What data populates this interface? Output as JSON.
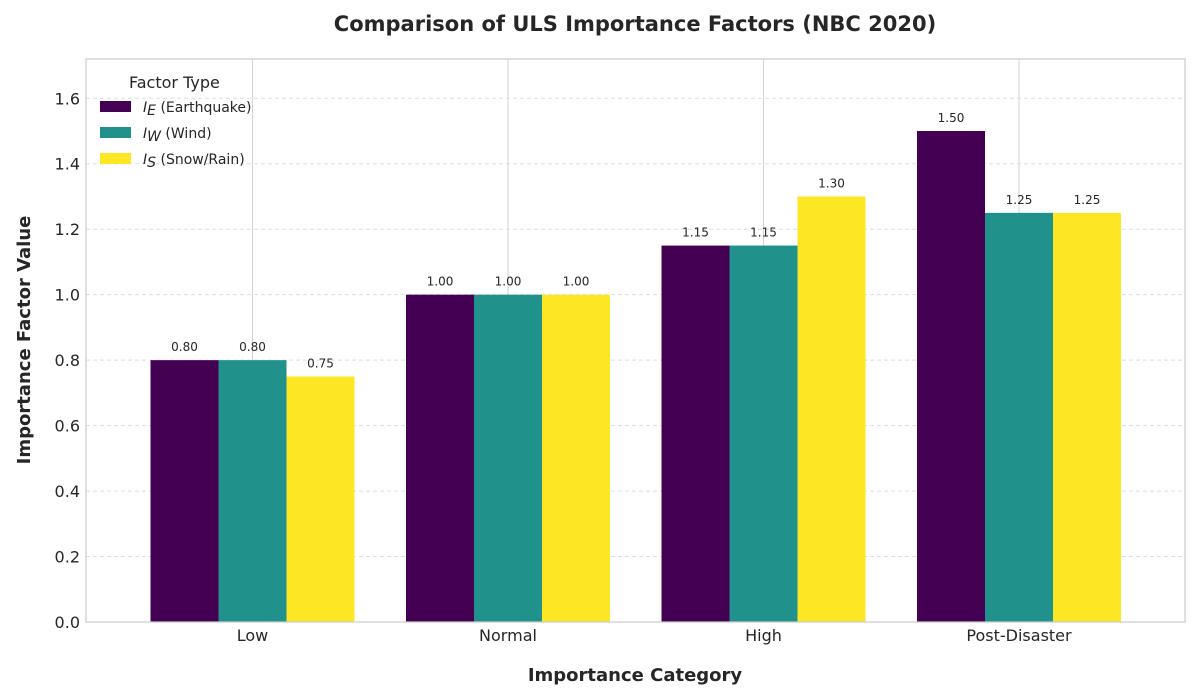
{
  "chart_data": {
    "type": "bar",
    "title": "Comparison of ULS Importance Factors (NBC 2020)",
    "xlabel": "Importance Category",
    "ylabel": "Importance Factor Value",
    "categories": [
      "Low",
      "Normal",
      "High",
      "Post-Disaster"
    ],
    "ylim": [
      0,
      1.72
    ],
    "yticks": [
      0.0,
      0.2,
      0.4,
      0.6,
      0.8,
      1.0,
      1.2,
      1.4,
      1.6
    ],
    "grid": true,
    "legend": {
      "title": "Factor Type",
      "placement": "top-left"
    },
    "series": [
      {
        "name": "I_E (Earthquake)",
        "symbol": "I",
        "subscript": "E",
        "desc": "(Earthquake)",
        "color": "#440154",
        "values": [
          0.8,
          1.0,
          1.15,
          1.5
        ],
        "labels": [
          "0.80",
          "1.00",
          "1.15",
          "1.50"
        ]
      },
      {
        "name": "I_W (Wind)",
        "symbol": "I",
        "subscript": "W",
        "desc": "(Wind)",
        "color": "#21918c",
        "values": [
          0.8,
          1.0,
          1.15,
          1.25
        ],
        "labels": [
          "0.80",
          "1.00",
          "1.15",
          "1.25"
        ]
      },
      {
        "name": "I_S (Snow/Rain)",
        "symbol": "I",
        "subscript": "S",
        "desc": "(Snow/Rain)",
        "color": "#fde725",
        "values": [
          0.75,
          1.0,
          1.3,
          1.25
        ],
        "labels": [
          "0.75",
          "1.00",
          "1.30",
          "1.25"
        ]
      }
    ]
  }
}
